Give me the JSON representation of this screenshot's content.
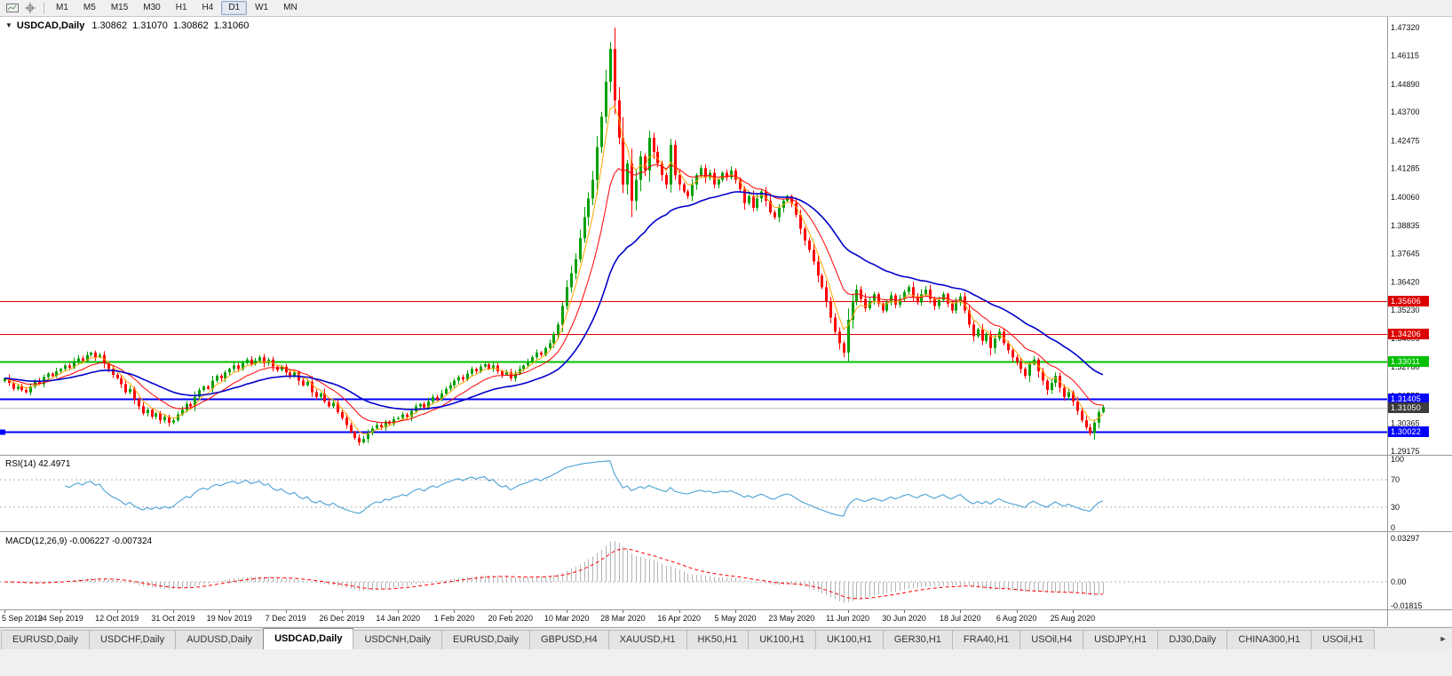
{
  "toolbar": {
    "icons": [
      "chart-icon",
      "crosshair-icon"
    ],
    "timeframe_buttons": [
      "M1",
      "M5",
      "M15",
      "M30",
      "H1",
      "H4",
      "D1",
      "W1",
      "MN"
    ],
    "active_timeframe": "D1"
  },
  "chart_header": {
    "collapse_icon": "▼",
    "symbol": "USDCAD,Daily",
    "open": "1.30862",
    "high": "1.31070",
    "low": "1.30862",
    "close": "1.31060"
  },
  "tabs": {
    "items": [
      "EURUSD,Daily",
      "USDCHF,Daily",
      "AUDUSD,Daily",
      "USDCAD,Daily",
      "USDCNH,Daily",
      "EURUSD,Daily",
      "GBPUSD,H4",
      "XAUUSD,H1",
      "HK50,H1",
      "UK100,H1",
      "UK100,H1",
      "GER30,H1",
      "FRA40,H1",
      "USOil,H4",
      "USDJPY,H1",
      "DJ30,Daily",
      "CHINA300,H1",
      "USOil,H1"
    ],
    "active_index": 3,
    "scroll_icon": "►"
  },
  "chart_data": {
    "type": "candlestick",
    "symbol": "USDCAD",
    "timeframe": "Daily",
    "title": "USDCAD,Daily",
    "x_labels": [
      "5 Sep 2019",
      "24 Sep 2019",
      "12 Oct 2019",
      "31 Oct 2019",
      "19 Nov 2019",
      "7 Dec 2019",
      "26 Dec 2019",
      "14 Jan 2020",
      "1 Feb 2020",
      "20 Feb 2020",
      "10 Mar 2020",
      "28 Mar 2020",
      "16 Apr 2020",
      "5 May 2020",
      "23 May 2020",
      "11 Jun 2020",
      "30 Jun 2020",
      "18 Jul 2020",
      "6 Aug 2020",
      "25 Aug 2020"
    ],
    "bars_per_label": 13,
    "closes": [
      1.323,
      1.321,
      1.3185,
      1.3195,
      1.318,
      1.317,
      1.3195,
      1.322,
      1.3205,
      1.3235,
      1.325,
      1.324,
      1.326,
      1.327,
      1.3285,
      1.3275,
      1.33,
      1.3315,
      1.3305,
      1.333,
      1.334,
      1.332,
      1.333,
      1.3295,
      1.327,
      1.3245,
      1.323,
      1.3205,
      1.317,
      1.3185,
      1.314,
      1.311,
      1.308,
      1.3095,
      1.3065,
      1.308,
      1.305,
      1.3065,
      1.304,
      1.305,
      1.3075,
      1.3095,
      1.312,
      1.311,
      1.315,
      1.318,
      1.3195,
      1.3185,
      1.322,
      1.324,
      1.323,
      1.3255,
      1.327,
      1.3285,
      1.327,
      1.3295,
      1.331,
      1.329,
      1.3305,
      1.332,
      1.3295,
      1.331,
      1.328,
      1.3265,
      1.328,
      1.3255,
      1.324,
      1.3255,
      1.322,
      1.32,
      1.3215,
      1.317,
      1.315,
      1.3165,
      1.313,
      1.311,
      1.3125,
      1.3085,
      1.306,
      1.303,
      1.3,
      1.2975,
      1.2955,
      1.297,
      1.2995,
      1.3015,
      1.303,
      1.302,
      1.3045,
      1.3035,
      1.3055,
      1.306,
      1.3075,
      1.3065,
      1.309,
      1.311,
      1.312,
      1.3105,
      1.313,
      1.315,
      1.314,
      1.3165,
      1.3185,
      1.32,
      1.322,
      1.3235,
      1.3225,
      1.325,
      1.327,
      1.326,
      1.328,
      1.329,
      1.327,
      1.3285,
      1.326,
      1.3245,
      1.3255,
      1.323,
      1.325,
      1.327,
      1.3285,
      1.33,
      1.332,
      1.334,
      1.333,
      1.336,
      1.338,
      1.342,
      1.346,
      1.354,
      1.362,
      1.368,
      1.374,
      1.383,
      1.392,
      1.4,
      1.408,
      1.422,
      1.435,
      1.45,
      1.464,
      1.442,
      1.426,
      1.406,
      1.415,
      1.399,
      1.408,
      1.418,
      1.412,
      1.426,
      1.42,
      1.415,
      1.41,
      1.406,
      1.423,
      1.41,
      1.406,
      1.403,
      1.401,
      1.406,
      1.41,
      1.413,
      1.409,
      1.411,
      1.406,
      1.408,
      1.411,
      1.409,
      1.412,
      1.408,
      1.404,
      1.398,
      1.401,
      1.396,
      1.4,
      1.403,
      1.399,
      1.394,
      1.392,
      1.396,
      1.399,
      1.401,
      1.398,
      1.393,
      1.387,
      1.382,
      1.378,
      1.373,
      1.367,
      1.362,
      1.356,
      1.349,
      1.343,
      1.338,
      1.334,
      1.348,
      1.356,
      1.361,
      1.357,
      1.353,
      1.356,
      1.359,
      1.355,
      1.352,
      1.3555,
      1.3585,
      1.3545,
      1.357,
      1.36,
      1.362,
      1.358,
      1.3555,
      1.359,
      1.361,
      1.357,
      1.354,
      1.3565,
      1.359,
      1.355,
      1.352,
      1.3555,
      1.358,
      1.352,
      1.346,
      1.341,
      1.344,
      1.339,
      1.342,
      1.336,
      1.34,
      1.343,
      1.338,
      1.335,
      1.332,
      1.33,
      1.327,
      1.324,
      1.329,
      1.331,
      1.326,
      1.322,
      1.318,
      1.321,
      1.324,
      1.319,
      1.315,
      1.317,
      1.313,
      1.309,
      1.305,
      1.302,
      1.2995,
      1.304,
      1.3085,
      1.3106
    ],
    "y_axis": {
      "top": 1.4732,
      "bottom": 1.29175,
      "labels": [
        "1.47320",
        "1.46115",
        "1.44890",
        "1.43700",
        "1.42475",
        "1.41285",
        "1.40060",
        "1.38835",
        "1.37645",
        "1.36420",
        "1.35230",
        "1.34005",
        "1.32780",
        "1.31555",
        "1.30365",
        "1.29175"
      ]
    },
    "colors": {
      "background": "#FFFFFF",
      "up": "#00A000",
      "down": "#FF0000",
      "rsi": "#4AA0D5",
      "macd_hist": "#B4B4B4",
      "macd_signal": "#FF0000"
    },
    "moving_averages": [
      {
        "period": 5,
        "color": "#FFA500"
      },
      {
        "period": 13,
        "color": "#FF0000"
      },
      {
        "period": 34,
        "color": "#0000CC"
      }
    ],
    "h_lines": [
      {
        "price": 1.35606,
        "label": "1.35606",
        "color": "#DD0000",
        "width": 1
      },
      {
        "price": 1.34206,
        "label": "1.34206",
        "color": "#DD0000",
        "width": 1
      },
      {
        "price": 1.33011,
        "label": "1.33011",
        "color": "#00C000",
        "width": 2
      },
      {
        "price": 1.31405,
        "label": "1.31405",
        "color": "#0000FF",
        "width": 2
      },
      {
        "price": 1.30022,
        "label": "1.30022",
        "color": "#0000FF",
        "width": 2,
        "anchor": true
      }
    ],
    "bid": {
      "price": 1.3105,
      "label": "1.31050",
      "line_color": "#C0C0C0",
      "tag_color": "#3C3C3C"
    },
    "indicators": {
      "rsi": {
        "label": "RSI(14) 42.4971",
        "period": 14,
        "levels": [
          100,
          70,
          30,
          0
        ],
        "level_lines": [
          70,
          30
        ]
      },
      "macd": {
        "label": "MACD(12,26,9) -0.006227 -0.007324",
        "fast": 12,
        "slow": 26,
        "signal": 9,
        "axis": [
          {
            "value": 0.03297,
            "label": "0.03297"
          },
          {
            "value": 0,
            "label": "0.00"
          },
          {
            "value": -0.01815,
            "label": "-0.01815"
          }
        ]
      }
    }
  }
}
